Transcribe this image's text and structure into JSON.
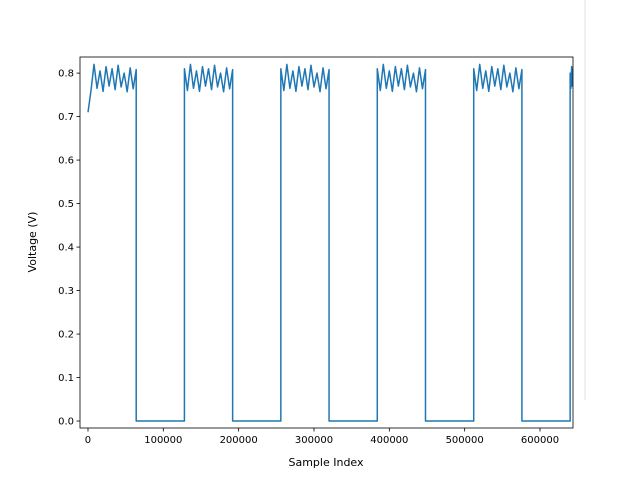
{
  "chart_data": {
    "type": "line",
    "xlabel": "Sample Index",
    "ylabel": "Voltage (V)",
    "x": [
      0,
      4000,
      8000,
      12000,
      16000,
      20000,
      24000,
      28000,
      32000,
      36000,
      40000,
      44000,
      48000,
      52000,
      56000,
      60000,
      64000,
      64000,
      128000,
      128000,
      132000,
      136000,
      140000,
      144000,
      148000,
      152000,
      156000,
      160000,
      164000,
      168000,
      172000,
      176000,
      180000,
      184000,
      188000,
      192000,
      192000,
      256000,
      256000,
      260000,
      264000,
      268000,
      272000,
      276000,
      280000,
      284000,
      288000,
      292000,
      296000,
      300000,
      304000,
      308000,
      312000,
      316000,
      320000,
      320000,
      384000,
      384000,
      388000,
      392000,
      396000,
      400000,
      404000,
      408000,
      412000,
      416000,
      420000,
      424000,
      428000,
      432000,
      436000,
      440000,
      444000,
      448000,
      448000,
      512000,
      512000,
      516000,
      520000,
      524000,
      528000,
      532000,
      536000,
      540000,
      544000,
      548000,
      552000,
      556000,
      560000,
      564000,
      568000,
      572000,
      576000,
      576000,
      640000,
      640000,
      641000,
      642000,
      643000,
      644000
    ],
    "series": [
      {
        "color": "#1f77b4",
        "values": [
          0.71,
          0.76,
          0.82,
          0.765,
          0.805,
          0.758,
          0.815,
          0.77,
          0.81,
          0.762,
          0.818,
          0.768,
          0.8,
          0.757,
          0.812,
          0.764,
          0.808,
          0,
          0,
          0.81,
          0.76,
          0.82,
          0.765,
          0.805,
          0.758,
          0.815,
          0.77,
          0.81,
          0.762,
          0.818,
          0.768,
          0.8,
          0.757,
          0.812,
          0.764,
          0.808,
          0,
          0,
          0.81,
          0.76,
          0.82,
          0.765,
          0.805,
          0.758,
          0.815,
          0.77,
          0.81,
          0.762,
          0.818,
          0.768,
          0.8,
          0.757,
          0.812,
          0.764,
          0.808,
          0,
          0,
          0.81,
          0.76,
          0.82,
          0.765,
          0.805,
          0.758,
          0.815,
          0.77,
          0.81,
          0.762,
          0.818,
          0.768,
          0.8,
          0.757,
          0.812,
          0.764,
          0.808,
          0,
          0,
          0.81,
          0.76,
          0.82,
          0.765,
          0.805,
          0.758,
          0.815,
          0.77,
          0.81,
          0.762,
          0.818,
          0.768,
          0.8,
          0.757,
          0.812,
          0.764,
          0.808,
          0,
          0,
          0.8,
          0.765,
          0.815,
          0.77,
          0.81
        ]
      }
    ],
    "xlim": [
      -10600,
      643800
    ],
    "ylim": [
      -0.016,
      0.837
    ],
    "xticks": [
      0,
      100000,
      200000,
      300000,
      400000,
      500000,
      600000
    ],
    "yticks": [
      {
        "value": 0,
        "label": "0.0"
      },
      0.1,
      0.2,
      0.3,
      0.4,
      0.5,
      0.6,
      0.7,
      0.8
    ]
  }
}
